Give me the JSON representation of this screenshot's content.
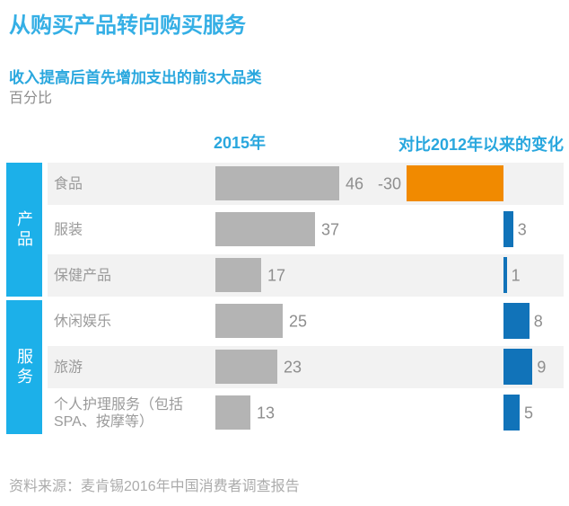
{
  "title": "从购买产品转向购买服务",
  "subtitle": "收入提高后首先增加支出的前3大品类",
  "unit_label": "百分比",
  "column_headers": {
    "year_2015": "2015年",
    "change": "对比2012年以来的变化"
  },
  "source_note": "资料来源：麦肯锡2016年中国消费者调查报告",
  "colors": {
    "title_blue": "#35AFE5",
    "header_blue": "#29A7DE",
    "sidebar_cyan": "#1CB0E9",
    "stripe_gray": "#F2F2F2",
    "bar_gray": "#B4B4B4",
    "negative_bar": "#F18A00",
    "positive_bar": "#1173B9",
    "label_gray": "#9B9B9B",
    "value_gray": "#8E8E8E",
    "footer_gray": "#ABABAB"
  },
  "chart_data": {
    "type": "bar",
    "orientation": "horizontal",
    "title": "收入提高后首先增加支出的前3大品类",
    "unit": "百分比",
    "legend_position": "top",
    "series_names": [
      "2015年",
      "对比2012年以来的变化"
    ],
    "groups": [
      "产品",
      "服务"
    ],
    "rows": [
      {
        "group": "产品",
        "label": "食品",
        "value_2015": 46,
        "change_since_2012": -30
      },
      {
        "group": "产品",
        "label": "服装",
        "value_2015": 37,
        "change_since_2012": 3
      },
      {
        "group": "产品",
        "label": "保健产品",
        "value_2015": 17,
        "change_since_2012": 1
      },
      {
        "group": "服务",
        "label": "休闲娱乐",
        "value_2015": 25,
        "change_since_2012": 8
      },
      {
        "group": "服务",
        "label": "旅游",
        "value_2015": 23,
        "change_since_2012": 9
      },
      {
        "group": "服务",
        "label": "个人护理服务（包括SPA、按摩等）",
        "value_2015": 13,
        "change_since_2012": 5
      }
    ]
  }
}
